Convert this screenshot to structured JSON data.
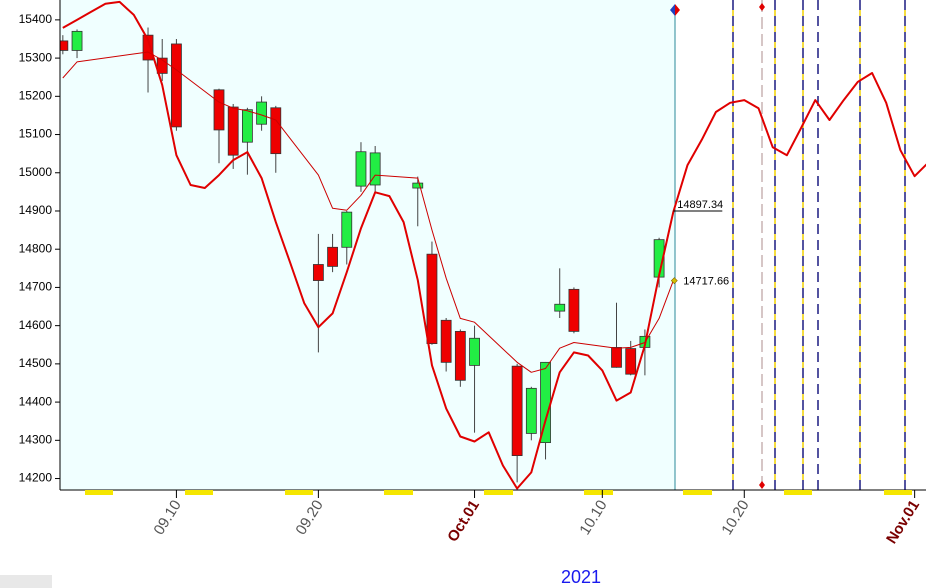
{
  "chart_data": {
    "type": "candlestick",
    "x_label": "2021",
    "xlim": [
      1.8,
      62.8
    ],
    "xticks": [
      {
        "value": 10,
        "label": "09.10"
      },
      {
        "value": 20,
        "label": "09.20"
      },
      {
        "value": 31,
        "label": "Oct.01"
      },
      {
        "value": 40,
        "label": "10.10"
      },
      {
        "value": 50,
        "label": "10.20"
      },
      {
        "value": 62,
        "label": "Nov.01"
      }
    ],
    "ylim": [
      14170,
      15452
    ],
    "yticks": [
      14200,
      14300,
      14400,
      14500,
      14600,
      14700,
      14800,
      14900,
      15000,
      15100,
      15200,
      15300,
      15400
    ],
    "up_color": "#22ee44",
    "down_color": "#ee0000",
    "candles": {
      "x": [
        2,
        3,
        8,
        9,
        10,
        13,
        14,
        15,
        16,
        17,
        20,
        21,
        22,
        23,
        24,
        27,
        28,
        29,
        30,
        31,
        34,
        35,
        36,
        37,
        38,
        41,
        42,
        43,
        44
      ],
      "open": [
        15345,
        15320,
        15360,
        15300,
        15337,
        15217,
        15172,
        15080,
        15127,
        15170,
        14760,
        14805,
        14805,
        14965,
        14968,
        14960,
        14787,
        14614,
        14585,
        14496,
        14494,
        14318,
        14294,
        14638,
        14695,
        14543,
        14540,
        14543,
        14727
      ],
      "high": [
        15360,
        15375,
        15380,
        15350,
        15350,
        15220,
        15180,
        15170,
        15200,
        15175,
        14840,
        14840,
        14900,
        15080,
        15070,
        14990,
        14820,
        14620,
        14590,
        14600,
        14500,
        14440,
        14505,
        14750,
        14700,
        14660,
        14560,
        14590,
        14830
      ],
      "low": [
        15310,
        15300,
        15210,
        15240,
        15110,
        15025,
        15010,
        14995,
        15110,
        15000,
        14530,
        14740,
        14760,
        14950,
        14950,
        14860,
        14550,
        14480,
        14440,
        14320,
        14190,
        14300,
        14250,
        14620,
        14580,
        14490,
        14470,
        14470,
        14700
      ],
      "close": [
        15320,
        15370,
        15295,
        15260,
        15120,
        15112,
        15046,
        15165,
        15185,
        15050,
        14718,
        14755,
        14897,
        15055,
        15052,
        14973,
        14553,
        14504,
        14457,
        14567,
        14260,
        14436,
        14504,
        14656,
        14585,
        14491,
        14473,
        14572,
        14825
      ]
    },
    "lines": [
      {
        "color": "#e00000",
        "width": 2,
        "x": [
          2,
          3,
          4,
          5,
          6,
          7,
          8,
          9,
          10,
          11,
          12,
          13,
          14,
          15,
          16,
          17,
          18,
          19,
          20,
          21,
          22,
          23,
          24,
          25,
          26,
          27,
          28,
          29,
          30,
          31,
          32,
          33,
          34,
          35,
          36,
          37,
          38,
          39,
          40,
          41,
          42,
          43,
          44,
          45,
          46,
          47,
          48,
          49,
          50,
          51,
          52,
          53,
          54,
          55,
          56,
          57,
          58,
          59,
          60,
          61,
          62,
          63
        ],
        "values": [
          15379,
          15400,
          15421,
          15442,
          15447,
          15413,
          15348,
          15230,
          15046,
          14968,
          14960,
          14994,
          15033,
          15054,
          14986,
          14871,
          14766,
          14659,
          14596,
          14632,
          14740,
          14855,
          14949,
          14939,
          14871,
          14719,
          14496,
          14383,
          14310,
          14297,
          14321,
          14234,
          14174,
          14216,
          14352,
          14478,
          14530,
          14522,
          14483,
          14404,
          14425,
          14549,
          14732,
          14897.34,
          15020,
          15086,
          15159,
          15183,
          15190,
          15169,
          15067,
          15046,
          15117,
          15190,
          15138,
          15190,
          15238,
          15261,
          15183,
          15059,
          14991,
          15028
        ]
      },
      {
        "color": "#cc0000",
        "width": 1,
        "x": [
          2,
          3,
          8,
          9,
          10,
          13,
          14,
          15,
          16,
          17,
          20,
          21,
          22,
          23,
          24,
          27,
          28,
          29,
          30,
          31,
          34,
          35,
          36,
          37,
          38,
          41,
          42,
          43,
          44,
          45
        ],
        "values": [
          15248,
          15290,
          15316,
          15295,
          15269,
          15185,
          15169,
          15162,
          15151,
          15138,
          14994,
          14907,
          14902,
          14941,
          14994,
          14986,
          14850,
          14724,
          14619,
          14609,
          14504,
          14478,
          14488,
          14541,
          14556,
          14541,
          14543,
          14556,
          14619,
          14717.66
        ]
      }
    ],
    "price_labels": [
      {
        "text": "14897.34",
        "value": 14897.34,
        "x": 45
      },
      {
        "text": "14717.66",
        "value": 14717.66,
        "x": 45
      }
    ]
  }
}
